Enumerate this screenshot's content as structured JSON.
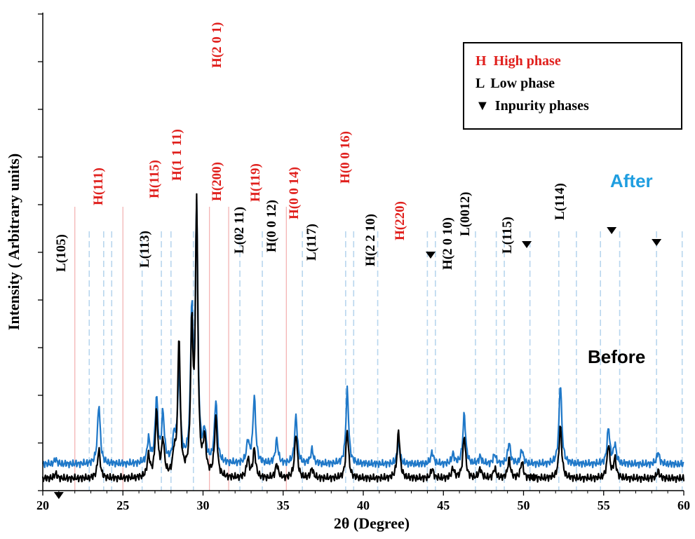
{
  "chart_data": {
    "type": "line",
    "title": "",
    "xlabel": "2θ (Degree)",
    "ylabel": "Intensity ( Arbitrary units)",
    "xlim": [
      20,
      60
    ],
    "xticks": [
      "20",
      "25",
      "30",
      "35",
      "40",
      "45",
      "50",
      "55",
      "60"
    ],
    "grid": false,
    "series": [
      {
        "name": "After",
        "color": "#1f78c8",
        "baseline": 0.3,
        "peaks": [
          [
            20.8,
            0.1
          ],
          [
            23.5,
            1.25
          ],
          [
            26.6,
            0.5
          ],
          [
            27.1,
            1.35
          ],
          [
            27.5,
            1.0
          ],
          [
            28.2,
            0.5
          ],
          [
            28.5,
            1.9
          ],
          [
            29.3,
            3.0
          ],
          [
            29.6,
            5.3
          ],
          [
            30.1,
            0.6
          ],
          [
            30.8,
            1.3
          ],
          [
            32.8,
            0.45
          ],
          [
            33.2,
            1.4
          ],
          [
            34.6,
            0.5
          ],
          [
            35.8,
            1.0
          ],
          [
            36.8,
            0.3
          ],
          [
            39.0,
            1.55
          ],
          [
            42.2,
            0.45
          ],
          [
            44.3,
            0.25
          ],
          [
            45.6,
            0.2
          ],
          [
            46.3,
            1.05
          ],
          [
            47.3,
            0.15
          ],
          [
            48.2,
            0.2
          ],
          [
            49.1,
            0.45
          ],
          [
            49.9,
            0.3
          ],
          [
            52.3,
            1.7
          ],
          [
            55.3,
            0.75
          ],
          [
            55.7,
            0.4
          ],
          [
            58.4,
            0.25
          ]
        ]
      },
      {
        "name": "Before",
        "color": "#000000",
        "baseline": 0.0,
        "peaks": [
          [
            20.8,
            0.1
          ],
          [
            23.5,
            0.6
          ],
          [
            26.6,
            0.45
          ],
          [
            27.1,
            1.35
          ],
          [
            27.5,
            0.75
          ],
          [
            28.2,
            0.45
          ],
          [
            28.5,
            2.9
          ],
          [
            29.3,
            3.0
          ],
          [
            29.6,
            5.6
          ],
          [
            30.1,
            0.75
          ],
          [
            30.8,
            1.25
          ],
          [
            32.8,
            0.4
          ],
          [
            33.2,
            0.6
          ],
          [
            34.6,
            0.3
          ],
          [
            35.8,
            0.95
          ],
          [
            36.8,
            0.2
          ],
          [
            39.0,
            1.0
          ],
          [
            42.2,
            1.0
          ],
          [
            44.3,
            0.2
          ],
          [
            45.6,
            0.2
          ],
          [
            46.3,
            0.9
          ],
          [
            47.3,
            0.2
          ],
          [
            48.2,
            0.2
          ],
          [
            49.1,
            0.4
          ],
          [
            49.9,
            0.35
          ],
          [
            52.3,
            1.1
          ],
          [
            55.3,
            0.7
          ],
          [
            55.7,
            0.4
          ],
          [
            58.4,
            0.15
          ]
        ]
      }
    ],
    "reflection_lines": {
      "high_phase_color": "#f4b4b4",
      "low_phase_color": "#b8d6ee",
      "high_phase_x": [
        22.0,
        25.0,
        30.4,
        31.6,
        35.2
      ],
      "low_phase_x": [
        22.9,
        23.8,
        24.3,
        26.2,
        27.4,
        28.0,
        29.4,
        32.3,
        33.7,
        36.2,
        38.9,
        39.4,
        40.9,
        44.0,
        44.5,
        47.0,
        48.3,
        48.8,
        50.4,
        52.2,
        53.3,
        54.8,
        56.0,
        58.3,
        59.9
      ]
    },
    "annotations": [
      {
        "text": "L(105)",
        "x": 21.2,
        "phase": "L"
      },
      {
        "text": "H(111)",
        "x": 23.5,
        "phase": "H"
      },
      {
        "text": "L(113)",
        "x": 26.4,
        "phase": "L"
      },
      {
        "text": "H(115)",
        "x": 27.0,
        "phase": "H"
      },
      {
        "text": "H(1 1 11)",
        "x": 28.4,
        "phase": "H"
      },
      {
        "text": "H(2 0 1)",
        "x": 30.9,
        "phase": "H"
      },
      {
        "text": "H(200)",
        "x": 30.9,
        "phase": "H"
      },
      {
        "text": "L(02 11)",
        "x": 32.3,
        "phase": "L"
      },
      {
        "text": "H(119)",
        "x": 33.3,
        "phase": "H"
      },
      {
        "text": "H(0 0 12)",
        "x": 34.3,
        "phase": "k"
      },
      {
        "text": "H(0 0 14)",
        "x": 35.7,
        "phase": "H"
      },
      {
        "text": "L(117)",
        "x": 36.8,
        "phase": "L"
      },
      {
        "text": "H(0 0 16)",
        "x": 38.9,
        "phase": "H"
      },
      {
        "text": "H(2 2 10)",
        "x": 40.5,
        "phase": "k"
      },
      {
        "text": "H(220)",
        "x": 42.3,
        "phase": "H"
      },
      {
        "text": "H(2 0 10)",
        "x": 45.3,
        "phase": "k"
      },
      {
        "text": "L(0012)",
        "x": 46.4,
        "phase": "L"
      },
      {
        "text": "L(115)",
        "x": 49.0,
        "phase": "L"
      },
      {
        "text": "L(114)",
        "x": 52.3,
        "phase": "L"
      }
    ],
    "impurity_markers": [
      {
        "x": 21.0,
        "series": "axis"
      },
      {
        "x": 44.2,
        "series": "After"
      },
      {
        "x": 50.2,
        "series": "After"
      },
      {
        "x": 55.5,
        "series": "After"
      },
      {
        "x": 58.3,
        "series": "After"
      },
      {
        "x": 50.6,
        "series": "Before"
      }
    ],
    "legend": {
      "position": "top-right",
      "entries": [
        {
          "symbol": "H",
          "text": "High phase",
          "color": "#e0201d"
        },
        {
          "symbol": "L",
          "text": "Low phase",
          "color": "#000000"
        },
        {
          "symbol": "▼",
          "text": "Inpurity phases",
          "color": "#000000"
        }
      ]
    }
  }
}
